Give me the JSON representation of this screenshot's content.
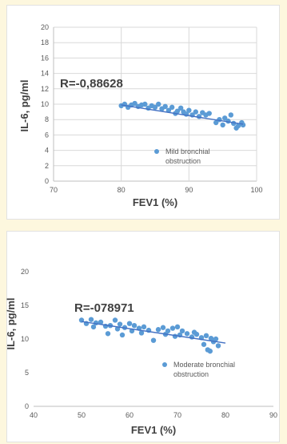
{
  "chart_data": [
    {
      "type": "scatter",
      "xlabel": "FEV1  (%)",
      "ylabel": "IL-6, pg/ml",
      "annotation": "R=-0,88628",
      "xlim": [
        70,
        100
      ],
      "ylim": [
        0,
        20
      ],
      "x_ticks": [
        "70",
        "80",
        "90",
        "100"
      ],
      "y_ticks": [
        "0",
        "2",
        "4",
        "6",
        "8",
        "10",
        "12",
        "14",
        "16",
        "18",
        "20"
      ],
      "grid": "vertical and horizontal",
      "legend_position": "bottom-right",
      "marker_color": "#5b9bd5",
      "trend_color": "#4472c4",
      "series": [
        {
          "name": "Mild bronchial obstruction",
          "trendline": [
            [
              80,
              9.9
            ],
            [
              98,
              7.4
            ]
          ],
          "points": [
            [
              80,
              9.8
            ],
            [
              80.5,
              10.0
            ],
            [
              81,
              9.6
            ],
            [
              81.5,
              9.9
            ],
            [
              82,
              10.1
            ],
            [
              82.5,
              9.7
            ],
            [
              83,
              9.9
            ],
            [
              83.5,
              10.0
            ],
            [
              84,
              9.5
            ],
            [
              84.5,
              9.8
            ],
            [
              85,
              9.6
            ],
            [
              85.5,
              10.0
            ],
            [
              86,
              9.4
            ],
            [
              86.5,
              9.7
            ],
            [
              87,
              9.2
            ],
            [
              87.5,
              9.6
            ],
            [
              88,
              8.8
            ],
            [
              88.3,
              9.1
            ],
            [
              88.8,
              9.5
            ],
            [
              89.2,
              9.0
            ],
            [
              89.6,
              8.7
            ],
            [
              90,
              9.2
            ],
            [
              90.5,
              8.6
            ],
            [
              91,
              9.0
            ],
            [
              91.5,
              8.4
            ],
            [
              92,
              8.9
            ],
            [
              92.5,
              8.6
            ],
            [
              93,
              8.8
            ],
            [
              94,
              7.6
            ],
            [
              94.5,
              8.0
            ],
            [
              95,
              7.3
            ],
            [
              95.3,
              8.2
            ],
            [
              95.8,
              7.8
            ],
            [
              96.2,
              8.6
            ],
            [
              96.6,
              7.5
            ],
            [
              97,
              6.9
            ],
            [
              97.3,
              7.2
            ],
            [
              97.8,
              7.6
            ],
            [
              98,
              7.3
            ]
          ]
        }
      ]
    },
    {
      "type": "scatter",
      "xlabel": "FEV1 (%)",
      "ylabel": "IL-6, pg/ml",
      "annotation": "R=-078971",
      "xlim": [
        40,
        90
      ],
      "ylim": [
        0,
        20
      ],
      "x_ticks": [
        "40",
        "50",
        "60",
        "70",
        "80",
        "90"
      ],
      "y_ticks": [
        "0",
        "5",
        "10",
        "15",
        "20"
      ],
      "grid": "none",
      "legend_position": "bottom-right",
      "marker_color": "#5b9bd5",
      "trend_color": "#4472c4",
      "series": [
        {
          "name": "Moderate bronchial obstruction",
          "trendline": [
            [
              50,
              12.6
            ],
            [
              80,
              9.4
            ]
          ],
          "points": [
            [
              50,
              12.8
            ],
            [
              51,
              12.3
            ],
            [
              52,
              12.9
            ],
            [
              52.5,
              11.8
            ],
            [
              53,
              12.4
            ],
            [
              54,
              12.5
            ],
            [
              55,
              11.9
            ],
            [
              55.5,
              10.8
            ],
            [
              56,
              12.0
            ],
            [
              57,
              12.8
            ],
            [
              57.5,
              11.5
            ],
            [
              58,
              12.2
            ],
            [
              58.5,
              10.6
            ],
            [
              59,
              11.7
            ],
            [
              60,
              12.3
            ],
            [
              60.5,
              11.2
            ],
            [
              61,
              12.0
            ],
            [
              62,
              11.6
            ],
            [
              62.5,
              10.9
            ],
            [
              63,
              11.8
            ],
            [
              64,
              11.3
            ],
            [
              65,
              9.8
            ],
            [
              66,
              11.4
            ],
            [
              67,
              11.7
            ],
            [
              67.5,
              10.7
            ],
            [
              68,
              11.2
            ],
            [
              69,
              11.6
            ],
            [
              69.5,
              10.4
            ],
            [
              70,
              11.8
            ],
            [
              70.5,
              10.6
            ],
            [
              71,
              11.2
            ],
            [
              72,
              10.8
            ],
            [
              73,
              10.3
            ],
            [
              73.5,
              11.0
            ],
            [
              74,
              10.7
            ],
            [
              75,
              10.2
            ],
            [
              75.5,
              9.2
            ],
            [
              76,
              10.5
            ],
            [
              76.3,
              8.4
            ],
            [
              76.8,
              8.2
            ],
            [
              77,
              10.1
            ],
            [
              77.5,
              9.6
            ],
            [
              78,
              10.0
            ],
            [
              78.5,
              9.0
            ]
          ]
        }
      ]
    }
  ]
}
